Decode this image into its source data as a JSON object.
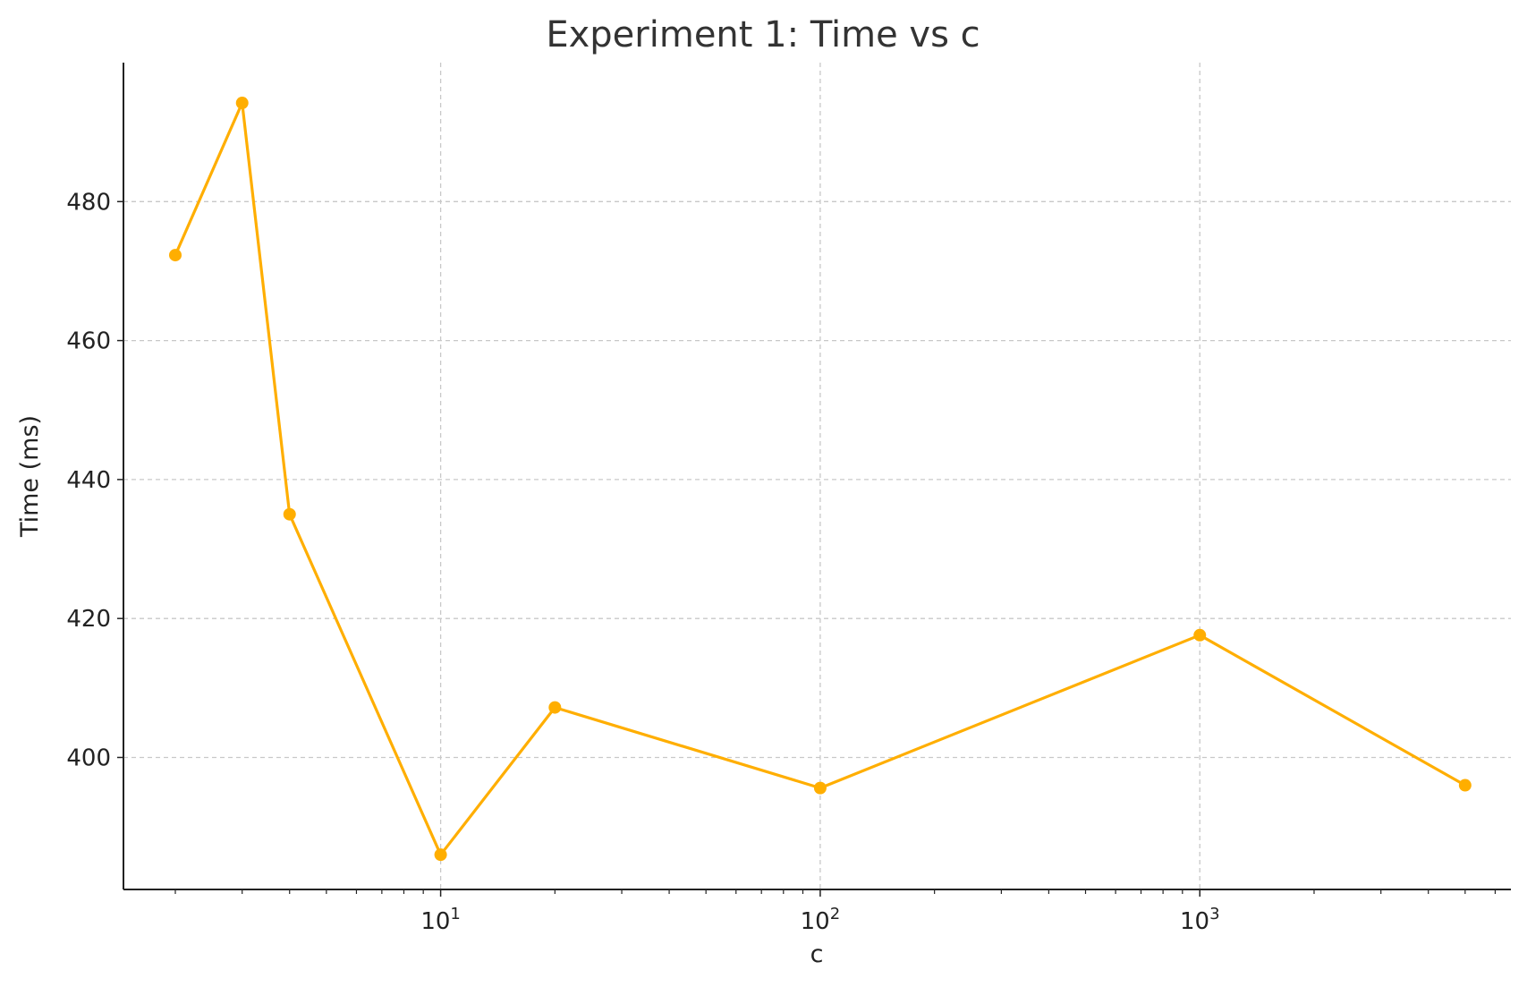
{
  "chart_data": {
    "type": "line",
    "title": "Experiment 1: Time vs c",
    "xlabel": "c",
    "ylabel": "Time (ms)",
    "xscale": "log",
    "xlim": [
      1.46,
      6600
    ],
    "ylim": [
      381,
      500
    ],
    "x_ticks": [
      {
        "value": 10,
        "base": "10",
        "exp": "1"
      },
      {
        "value": 100,
        "base": "10",
        "exp": "2"
      },
      {
        "value": 1000,
        "base": "10",
        "exp": "3"
      }
    ],
    "y_ticks": [
      400,
      420,
      440,
      460,
      480
    ],
    "grid": true,
    "series": [
      {
        "color": "#FFAE00",
        "marker": "circle",
        "x": [
          2,
          3,
          4,
          10,
          20,
          100,
          1000,
          5000
        ],
        "y": [
          472.3,
          494.2,
          435.0,
          386.0,
          407.2,
          395.6,
          417.6,
          396.0
        ]
      }
    ]
  }
}
